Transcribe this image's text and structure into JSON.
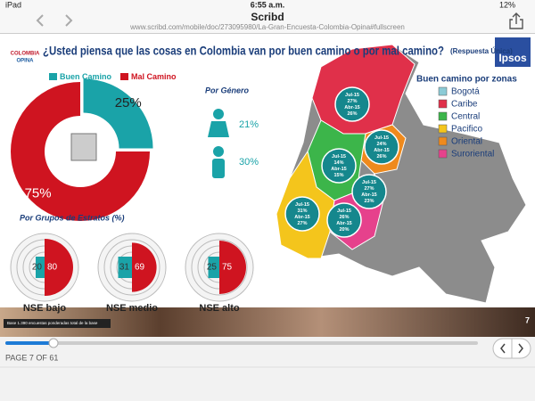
{
  "status_bar": {
    "device": "iPad",
    "time": "6:55 a.m.",
    "battery": "12%"
  },
  "nav": {
    "title": "Scribd",
    "url": "www.scribd.com/mobile/doc/273095980/La-Gran-Encuesta-Colombia-Opina#fullscreen"
  },
  "slide": {
    "title": "¿Usted piensa que las cosas en Colombia van por buen camino o por mal camino?",
    "subtitle": "(Respuesta Única)",
    "logo_lines": [
      "COLOMBIA",
      "OPINA"
    ],
    "brand": "Ipsos",
    "overall": {
      "categories": [
        "Buen Camino",
        "Mal Camino"
      ],
      "colors": [
        "#1aa3a8",
        "#cf1420"
      ],
      "values": [
        25,
        75
      ],
      "value_labels": [
        "25%",
        "75%"
      ]
    },
    "gender": {
      "title": "Por Género",
      "labels": [
        "21%",
        "30%"
      ]
    },
    "strata": {
      "title": "Por Grupos de Estratos (%)",
      "groups": [
        {
          "name": "NSE bajo",
          "values": [
            20,
            80
          ]
        },
        {
          "name": "NSE medio",
          "values": [
            31,
            69
          ]
        },
        {
          "name": "NSE alto",
          "values": [
            25,
            75
          ]
        }
      ]
    },
    "map": {
      "legend_title": "Buen camino por zonas",
      "zones": [
        {
          "name": "Bogotá",
          "color": "#8ccbd6"
        },
        {
          "name": "Caribe",
          "color": "#e0304a"
        },
        {
          "name": "Central",
          "color": "#3cb54a"
        },
        {
          "name": "Pacifico",
          "color": "#f4c51c"
        },
        {
          "name": "Oriental",
          "color": "#ef8a1d"
        },
        {
          "name": "Suroriental",
          "color": "#e6418c"
        }
      ],
      "bubbles": [
        [
          "Jul-15",
          "27%",
          "Abr-15",
          "26%"
        ],
        [
          "Jul-15",
          "24%",
          "Abr-15",
          "26%"
        ],
        [
          "Jul-15",
          "14%",
          "Abr-15",
          "15%"
        ],
        [
          "Jul-15",
          "27%",
          "Abr-15",
          "23%"
        ],
        [
          "Jul-15",
          "31%",
          "Abr-15",
          "27%"
        ],
        [
          "Jul-15",
          "26%",
          "Abr-15",
          "20%"
        ]
      ]
    },
    "footnote": "Base 1.390 encuestas ponderadas total de la base",
    "page_number": "7"
  },
  "reader": {
    "page_indicator": "PAGE 7 OF 61"
  }
}
